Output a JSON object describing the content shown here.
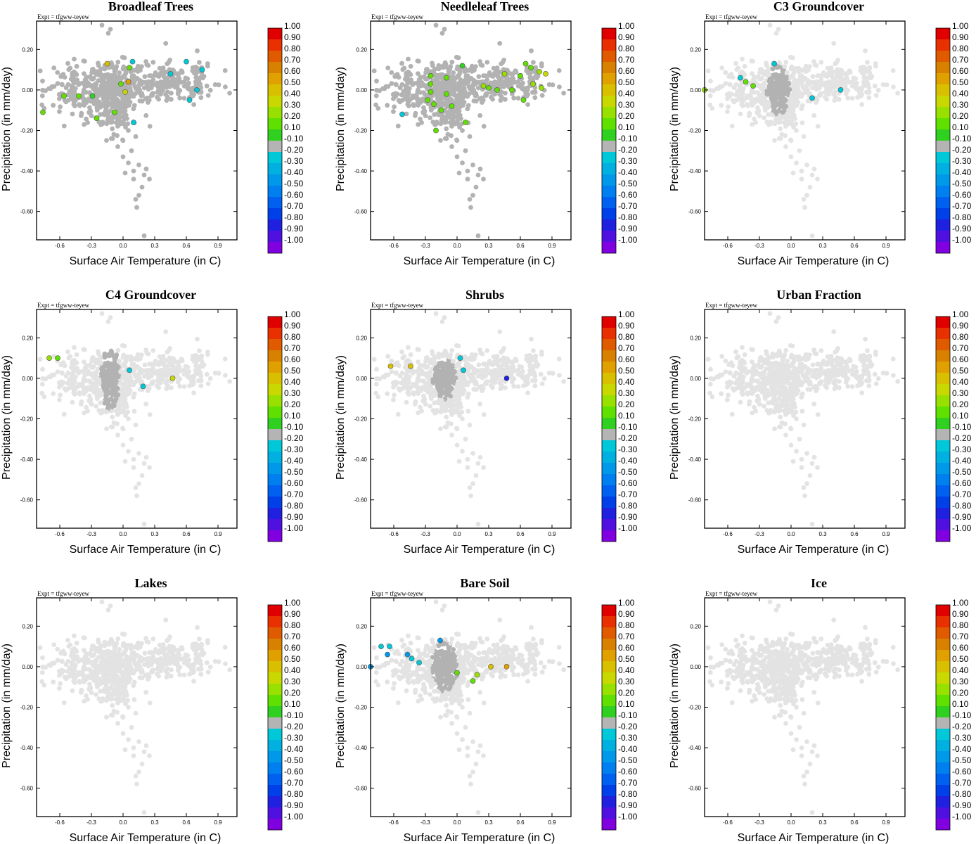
{
  "figure": {
    "expt_label": "Expt = tfgww-teyew",
    "xlabel": "Surface Air Temperature (in C)",
    "ylabel": "Precipitation (in mm/day)"
  },
  "colorbar": {
    "labels": [
      "1.00",
      "0.90",
      "0.80",
      "0.70",
      "0.60",
      "0.50",
      "0.40",
      "0.30",
      "0.20",
      "0.10",
      "-0.10",
      "-0.20",
      "-0.30",
      "-0.40",
      "-0.50",
      "-0.60",
      "-0.70",
      "-0.80",
      "-0.90",
      "-1.00"
    ],
    "colors": [
      "#e00000",
      "#e83000",
      "#e05a00",
      "#d88000",
      "#e0a000",
      "#d8c000",
      "#c8d800",
      "#98e000",
      "#60e000",
      "#30d020",
      "#b4b4b4",
      "#00c8d8",
      "#00b0e0",
      "#0098e8",
      "#0080f0",
      "#0060f0",
      "#0040e8",
      "#2020e0",
      "#5010e0",
      "#8000e0"
    ]
  },
  "chart_data": [
    {
      "type": "scatter",
      "title": "Broadleaf Trees",
      "xlabel": "Surface Air Temperature (in C)",
      "ylabel": "Precipitation (in mm/day)",
      "xlim": [
        -0.82,
        1.08
      ],
      "ylim": [
        -0.74,
        0.34
      ],
      "xticks": [
        "-0.6",
        "-0.3",
        "0.0",
        "0.3",
        "0.6",
        "0.9"
      ],
      "yticks": [
        "0.20",
        "0.00",
        "-0.20",
        "-0.40",
        "-0.60"
      ],
      "active_spread": [
        0.2,
        0.09
      ],
      "highlights": [
        {
          "x": -0.76,
          "y": -0.11,
          "v": 0.2
        },
        {
          "x": -0.56,
          "y": -0.03,
          "v": 0.2
        },
        {
          "x": -0.42,
          "y": -0.03,
          "v": 0.2
        },
        {
          "x": -0.29,
          "y": -0.03,
          "v": 0.1
        },
        {
          "x": -0.25,
          "y": -0.14,
          "v": 0.2
        },
        {
          "x": -0.15,
          "y": 0.13,
          "v": 0.5
        },
        {
          "x": -0.08,
          "y": -0.11,
          "v": 0.2
        },
        {
          "x": -0.02,
          "y": 0.03,
          "v": 0.2
        },
        {
          "x": 0.02,
          "y": -0.01,
          "v": 0.4
        },
        {
          "x": 0.06,
          "y": 0.11,
          "v": 0.2
        },
        {
          "x": 0.05,
          "y": 0.04,
          "v": 0.6
        },
        {
          "x": 0.1,
          "y": -0.16,
          "v": -0.2
        },
        {
          "x": 0.6,
          "y": 0.14,
          "v": -0.2
        },
        {
          "x": 0.75,
          "y": 0.1,
          "v": -0.2
        },
        {
          "x": 0.7,
          "y": 0.0,
          "v": -0.2
        },
        {
          "x": 0.63,
          "y": -0.05,
          "v": -0.2
        },
        {
          "x": 0.45,
          "y": 0.08,
          "v": -0.2
        },
        {
          "x": 0.09,
          "y": 0.14,
          "v": -0.2
        }
      ]
    },
    {
      "type": "scatter",
      "title": "Needleleaf Trees",
      "xlabel": "Surface Air Temperature (in C)",
      "ylabel": "Precipitation (in mm/day)",
      "xlim": [
        -0.82,
        1.08
      ],
      "ylim": [
        -0.74,
        0.34
      ],
      "xticks": [
        "-0.6",
        "-0.3",
        "0.0",
        "0.3",
        "0.6",
        "0.9"
      ],
      "yticks": [
        "0.20",
        "0.00",
        "-0.20",
        "-0.40",
        "-0.60"
      ],
      "active_spread": [
        0.2,
        0.09
      ],
      "highlights": [
        {
          "x": -0.52,
          "y": -0.12,
          "v": -0.2
        },
        {
          "x": -0.25,
          "y": 0.07,
          "v": 0.2
        },
        {
          "x": -0.25,
          "y": 0.03,
          "v": 0.2
        },
        {
          "x": -0.25,
          "y": -0.01,
          "v": 0.2
        },
        {
          "x": -0.28,
          "y": -0.05,
          "v": 0.2
        },
        {
          "x": -0.22,
          "y": -0.07,
          "v": 0.2
        },
        {
          "x": -0.2,
          "y": -0.2,
          "v": 0.2
        },
        {
          "x": -0.15,
          "y": -0.1,
          "v": 0.2
        },
        {
          "x": -0.1,
          "y": -0.02,
          "v": 0.2
        },
        {
          "x": -0.05,
          "y": -0.08,
          "v": 0.2
        },
        {
          "x": 0.05,
          "y": 0.12,
          "v": 0.1
        },
        {
          "x": 0.08,
          "y": -0.16,
          "v": 0.2
        },
        {
          "x": 0.25,
          "y": 0.02,
          "v": 0.3
        },
        {
          "x": 0.3,
          "y": 0.01,
          "v": 0.2
        },
        {
          "x": 0.38,
          "y": 0.0,
          "v": 0.2
        },
        {
          "x": 0.45,
          "y": 0.08,
          "v": 0.3
        },
        {
          "x": 0.52,
          "y": 0.0,
          "v": 0.2
        },
        {
          "x": 0.6,
          "y": 0.07,
          "v": 0.2
        },
        {
          "x": 0.65,
          "y": 0.13,
          "v": 0.2
        },
        {
          "x": 0.7,
          "y": 0.11,
          "v": 0.2
        },
        {
          "x": 0.72,
          "y": 0.03,
          "v": 0.3
        },
        {
          "x": 0.78,
          "y": 0.09,
          "v": 0.3
        },
        {
          "x": 0.8,
          "y": 0.01,
          "v": 0.3
        },
        {
          "x": 0.84,
          "y": 0.08,
          "v": 0.4
        },
        {
          "x": 0.63,
          "y": -0.05,
          "v": 0.2
        },
        {
          "x": -0.1,
          "y": 0.06,
          "v": 0.2
        }
      ]
    },
    {
      "type": "scatter",
      "title": "C3 Groundcover",
      "xlabel": "Surface Air Temperature (in C)",
      "ylabel": "Precipitation (in mm/day)",
      "xlim": [
        -0.82,
        1.08
      ],
      "ylim": [
        -0.74,
        0.34
      ],
      "xticks": [
        "-0.6",
        "-0.3",
        "0.0",
        "0.3",
        "0.6",
        "0.9"
      ],
      "yticks": [
        "0.20",
        "0.00",
        "-0.20",
        "-0.40",
        "-0.60"
      ],
      "active_spread": [
        0.1,
        0.07
      ],
      "highlights": [
        {
          "x": -0.82,
          "y": 0.0,
          "v": 0.3
        },
        {
          "x": -0.48,
          "y": 0.06,
          "v": -0.2
        },
        {
          "x": -0.43,
          "y": 0.04,
          "v": 0.2
        },
        {
          "x": -0.36,
          "y": 0.02,
          "v": 0.2
        },
        {
          "x": -0.16,
          "y": 0.13,
          "v": -0.2
        },
        {
          "x": 0.2,
          "y": -0.04,
          "v": -0.2
        },
        {
          "x": 0.47,
          "y": 0.0,
          "v": -0.2
        }
      ]
    },
    {
      "type": "scatter",
      "title": "C4 Groundcover",
      "xlabel": "Surface Air Temperature (in C)",
      "ylabel": "Precipitation (in mm/day)",
      "xlim": [
        -0.82,
        1.08
      ],
      "ylim": [
        -0.74,
        0.34
      ],
      "xticks": [
        "-0.6",
        "-0.3",
        "0.0",
        "0.3",
        "0.6",
        "0.9"
      ],
      "yticks": [
        "0.20",
        "0.00",
        "-0.20",
        "-0.40",
        "-0.60"
      ],
      "active_spread": [
        0.08,
        0.09
      ],
      "highlights": [
        {
          "x": -0.7,
          "y": 0.1,
          "v": 0.3
        },
        {
          "x": -0.62,
          "y": 0.1,
          "v": 0.2
        },
        {
          "x": 0.06,
          "y": 0.04,
          "v": -0.2
        },
        {
          "x": 0.19,
          "y": -0.04,
          "v": -0.2
        },
        {
          "x": 0.47,
          "y": 0.0,
          "v": 0.4
        }
      ]
    },
    {
      "type": "scatter",
      "title": "Shrubs",
      "xlabel": "Surface Air Temperature (in C)",
      "ylabel": "Precipitation (in mm/day)",
      "xlim": [
        -0.82,
        1.08
      ],
      "ylim": [
        -0.74,
        0.34
      ],
      "xticks": [
        "-0.6",
        "-0.3",
        "0.0",
        "0.3",
        "0.6",
        "0.9"
      ],
      "yticks": [
        "0.20",
        "0.00",
        "-0.20",
        "-0.40",
        "-0.60"
      ],
      "active_spread": [
        0.1,
        0.06
      ],
      "highlights": [
        {
          "x": -0.63,
          "y": 0.06,
          "v": 0.5
        },
        {
          "x": -0.44,
          "y": 0.06,
          "v": 0.5
        },
        {
          "x": 0.03,
          "y": 0.1,
          "v": -0.2
        },
        {
          "x": 0.06,
          "y": 0.04,
          "v": -0.2
        },
        {
          "x": 0.47,
          "y": 0.0,
          "v": -0.8
        }
      ]
    },
    {
      "type": "scatter",
      "title": "Urban Fraction",
      "xlabel": "Surface Air Temperature (in C)",
      "ylabel": "Precipitation (in mm/day)",
      "xlim": [
        -0.82,
        1.08
      ],
      "ylim": [
        -0.74,
        0.34
      ],
      "xticks": [
        "-0.6",
        "-0.3",
        "0.0",
        "0.3",
        "0.6",
        "0.9"
      ],
      "yticks": [
        "0.20",
        "0.00",
        "-0.20",
        "-0.40",
        "-0.60"
      ],
      "active_spread": [
        0,
        0
      ],
      "highlights": []
    },
    {
      "type": "scatter",
      "title": "Lakes",
      "xlabel": "Surface Air Temperature (in C)",
      "ylabel": "Precipitation (in mm/day)",
      "xlim": [
        -0.82,
        1.08
      ],
      "ylim": [
        -0.74,
        0.34
      ],
      "xticks": [
        "-0.6",
        "-0.3",
        "0.0",
        "0.3",
        "0.6",
        "0.9"
      ],
      "yticks": [
        "0.20",
        "0.00",
        "-0.20",
        "-0.40",
        "-0.60"
      ],
      "active_spread": [
        0,
        0
      ],
      "highlights": []
    },
    {
      "type": "scatter",
      "title": "Bare Soil",
      "xlabel": "Surface Air Temperature (in C)",
      "ylabel": "Precipitation (in mm/day)",
      "xlim": [
        -0.82,
        1.08
      ],
      "ylim": [
        -0.74,
        0.34
      ],
      "xticks": [
        "-0.6",
        "-0.3",
        "0.0",
        "0.3",
        "0.6",
        "0.9"
      ],
      "yticks": [
        "0.20",
        "0.00",
        "-0.20",
        "-0.40",
        "-0.60"
      ],
      "active_spread": [
        0.12,
        0.07
      ],
      "highlights": [
        {
          "x": -0.82,
          "y": 0.0,
          "v": -0.4
        },
        {
          "x": -0.72,
          "y": 0.1,
          "v": -0.2
        },
        {
          "x": -0.64,
          "y": 0.1,
          "v": -0.2
        },
        {
          "x": -0.66,
          "y": 0.06,
          "v": -0.4
        },
        {
          "x": -0.47,
          "y": 0.06,
          "v": -0.4
        },
        {
          "x": -0.43,
          "y": 0.04,
          "v": -0.2
        },
        {
          "x": -0.36,
          "y": 0.02,
          "v": -0.2
        },
        {
          "x": -0.16,
          "y": 0.13,
          "v": -0.4
        },
        {
          "x": 0.0,
          "y": -0.03,
          "v": 0.2
        },
        {
          "x": 0.19,
          "y": -0.04,
          "v": 0.3
        },
        {
          "x": 0.15,
          "y": -0.07,
          "v": 0.2
        },
        {
          "x": 0.32,
          "y": 0.0,
          "v": 0.5
        },
        {
          "x": 0.47,
          "y": 0.0,
          "v": 0.6
        }
      ]
    },
    {
      "type": "scatter",
      "title": "Ice",
      "xlabel": "Surface Air Temperature (in C)",
      "ylabel": "Precipitation (in mm/day)",
      "xlim": [
        -0.82,
        1.08
      ],
      "ylim": [
        -0.74,
        0.34
      ],
      "xticks": [
        "-0.6",
        "-0.3",
        "0.0",
        "0.3",
        "0.6",
        "0.9"
      ],
      "yticks": [
        "0.20",
        "0.00",
        "-0.20",
        "-0.40",
        "-0.60"
      ],
      "active_spread": [
        0,
        0
      ],
      "highlights": []
    }
  ]
}
